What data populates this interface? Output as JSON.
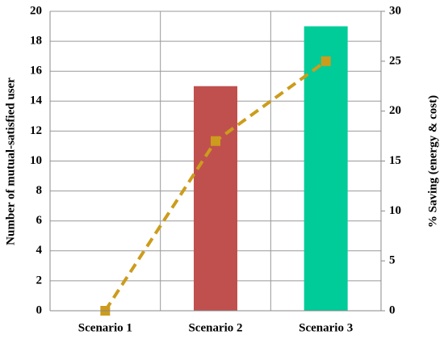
{
  "chart_data": {
    "type": "bar",
    "categories": [
      "Scenario 1",
      "Scenario 2",
      "Scenario 3"
    ],
    "series": [
      {
        "type": "bar",
        "colors": [
          "#c0504d",
          "#c0504d",
          "#00cc99"
        ],
        "values": [
          0,
          15,
          19
        ]
      },
      {
        "type": "line",
        "axis": "y2",
        "color": "#cc9c1c",
        "values": [
          0,
          17,
          25
        ]
      }
    ],
    "y_label": "Number of mutual-satisfied user",
    "y2_label": "% Saving (energy & cost)",
    "ylim": [
      0,
      20
    ],
    "yticks": [
      0,
      2,
      4,
      6,
      8,
      10,
      12,
      14,
      16,
      18,
      20
    ],
    "y2lim": [
      0,
      30
    ],
    "y2ticks": [
      0,
      5,
      10,
      15,
      20,
      25,
      30
    ],
    "grid": true
  }
}
